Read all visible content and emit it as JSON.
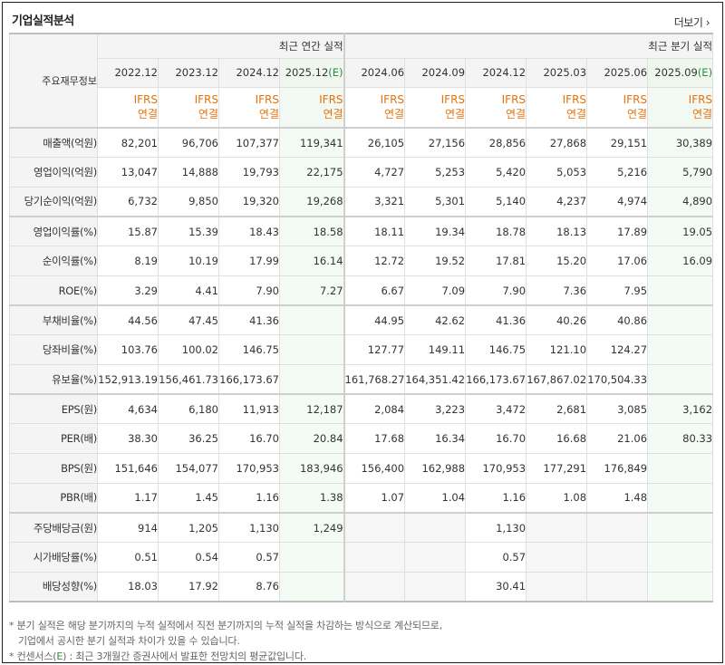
{
  "title": "기업실적분석",
  "more_link": "더보기",
  "corner_label": "주요재무정보",
  "groups": [
    "최근 연간 실적",
    "최근 분기 실적"
  ],
  "periods": [
    {
      "label": "2022.12",
      "est": ""
    },
    {
      "label": "2023.12",
      "est": ""
    },
    {
      "label": "2024.12",
      "est": ""
    },
    {
      "label": "2025.12",
      "est": "(E)"
    },
    {
      "label": "2024.06",
      "est": ""
    },
    {
      "label": "2024.09",
      "est": ""
    },
    {
      "label": "2024.12",
      "est": ""
    },
    {
      "label": "2025.03",
      "est": ""
    },
    {
      "label": "2025.06",
      "est": ""
    },
    {
      "label": "2025.09",
      "est": "(E)"
    }
  ],
  "standard": {
    "line1": "IFRS",
    "line2": "연결"
  },
  "rows": [
    {
      "label": "매출액(억원)",
      "values": [
        "82,201",
        "96,706",
        "107,377",
        "119,341",
        "26,105",
        "27,156",
        "28,856",
        "27,868",
        "29,151",
        "30,389"
      ]
    },
    {
      "label": "영업이익(억원)",
      "values": [
        "13,047",
        "14,888",
        "19,793",
        "22,175",
        "4,727",
        "5,253",
        "5,420",
        "5,053",
        "5,216",
        "5,790"
      ]
    },
    {
      "label": "당기순이익(억원)",
      "values": [
        "6,732",
        "9,850",
        "19,320",
        "19,268",
        "3,321",
        "5,301",
        "5,140",
        "4,237",
        "4,974",
        "4,890"
      ]
    },
    {
      "label": "영업이익률(%)",
      "values": [
        "15.87",
        "15.39",
        "18.43",
        "18.58",
        "18.11",
        "19.34",
        "18.78",
        "18.13",
        "17.89",
        "19.05"
      ]
    },
    {
      "label": "순이익률(%)",
      "values": [
        "8.19",
        "10.19",
        "17.99",
        "16.14",
        "12.72",
        "19.52",
        "17.81",
        "15.20",
        "17.06",
        "16.09"
      ]
    },
    {
      "label": "ROE(%)",
      "values": [
        "3.29",
        "4.41",
        "7.90",
        "7.27",
        "6.67",
        "7.09",
        "7.90",
        "7.36",
        "7.95",
        ""
      ]
    },
    {
      "label": "부채비율(%)",
      "values": [
        "44.56",
        "47.45",
        "41.36",
        "",
        "44.95",
        "42.62",
        "41.36",
        "40.26",
        "40.86",
        ""
      ]
    },
    {
      "label": "당좌비율(%)",
      "values": [
        "103.76",
        "100.02",
        "146.75",
        "",
        "127.77",
        "149.11",
        "146.75",
        "121.10",
        "124.27",
        ""
      ]
    },
    {
      "label": "유보율(%)",
      "values": [
        "152,913.19",
        "156,461.73",
        "166,173.67",
        "",
        "161,768.27",
        "164,351.42",
        "166,173.67",
        "167,867.02",
        "170,504.33",
        ""
      ]
    },
    {
      "label": "EPS(원)",
      "values": [
        "4,634",
        "6,180",
        "11,913",
        "12,187",
        "2,084",
        "3,223",
        "3,472",
        "2,681",
        "3,085",
        "3,162"
      ]
    },
    {
      "label": "PER(배)",
      "values": [
        "38.30",
        "36.25",
        "16.70",
        "20.84",
        "17.68",
        "16.34",
        "16.70",
        "16.68",
        "21.06",
        "80.33"
      ]
    },
    {
      "label": "BPS(원)",
      "values": [
        "151,646",
        "154,077",
        "170,953",
        "183,946",
        "156,400",
        "162,988",
        "170,953",
        "177,291",
        "176,849",
        ""
      ]
    },
    {
      "label": "PBR(배)",
      "values": [
        "1.17",
        "1.45",
        "1.16",
        "1.38",
        "1.07",
        "1.04",
        "1.16",
        "1.08",
        "1.48",
        ""
      ]
    },
    {
      "label": "주당배당금(원)",
      "values": [
        "914",
        "1,205",
        "1,130",
        "1,249",
        "",
        "",
        "1,130",
        "",
        "",
        ""
      ]
    },
    {
      "label": "시가배당률(%)",
      "values": [
        "0.51",
        "0.54",
        "0.57",
        "",
        "",
        "",
        "0.57",
        "",
        "",
        ""
      ]
    },
    {
      "label": "배당성향(%)",
      "values": [
        "18.03",
        "17.92",
        "8.76",
        "",
        "",
        "",
        "30.41",
        "",
        "",
        ""
      ]
    }
  ],
  "notes": {
    "line1": "* 분기 실적은 해당 분기까지의 누적 실적에서 직전 분기까지의 누적 실적을 차감하는 방식으로 계산되므로,",
    "line2": "기업에서 공시한 분기 실적과 차이가 있을 수 있습니다.",
    "line3_prefix": "* 컨센서스(",
    "line3_e": "E",
    "line3_suffix": ") : 최근 3개월간 증권사에서 발표한 전망치의 평균값입니다."
  }
}
